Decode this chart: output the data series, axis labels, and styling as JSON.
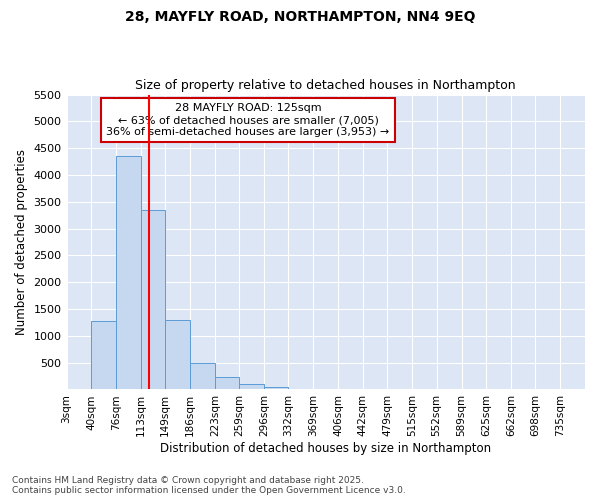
{
  "title1": "28, MAYFLY ROAD, NORTHAMPTON, NN4 9EQ",
  "title2": "Size of property relative to detached houses in Northampton",
  "xlabel": "Distribution of detached houses by size in Northampton",
  "ylabel": "Number of detached properties",
  "annotation_title": "28 MAYFLY ROAD: 125sqm",
  "annotation_line1": "← 63% of detached houses are smaller (7,005)",
  "annotation_line2": "36% of semi-detached houses are larger (3,953) →",
  "property_size": 125,
  "bar_color": "#c5d8f0",
  "bar_edge_color": "#5b9bd5",
  "vline_color": "#ff0000",
  "annotation_box_color": "#cc0000",
  "plot_bg_color": "#dce6f5",
  "figure_bg_color": "#ffffff",
  "grid_color": "#ffffff",
  "bins": [
    3,
    40,
    76,
    113,
    149,
    186,
    223,
    259,
    296,
    332,
    369,
    406,
    442,
    479,
    515,
    552,
    589,
    625,
    662,
    698,
    735
  ],
  "bin_labels": [
    "3sqm",
    "40sqm",
    "76sqm",
    "113sqm",
    "149sqm",
    "186sqm",
    "223sqm",
    "259sqm",
    "296sqm",
    "332sqm",
    "369sqm",
    "406sqm",
    "442sqm",
    "479sqm",
    "515sqm",
    "552sqm",
    "589sqm",
    "625sqm",
    "662sqm",
    "698sqm",
    "735sqm"
  ],
  "values": [
    0,
    1270,
    4350,
    3350,
    1300,
    500,
    240,
    100,
    50,
    15,
    5,
    3,
    2,
    1,
    0,
    0,
    0,
    0,
    0,
    0
  ],
  "ylim": [
    0,
    5500
  ],
  "yticks": [
    0,
    500,
    1000,
    1500,
    2000,
    2500,
    3000,
    3500,
    4000,
    4500,
    5000,
    5500
  ],
  "footer1": "Contains HM Land Registry data © Crown copyright and database right 2025.",
  "footer2": "Contains public sector information licensed under the Open Government Licence v3.0."
}
